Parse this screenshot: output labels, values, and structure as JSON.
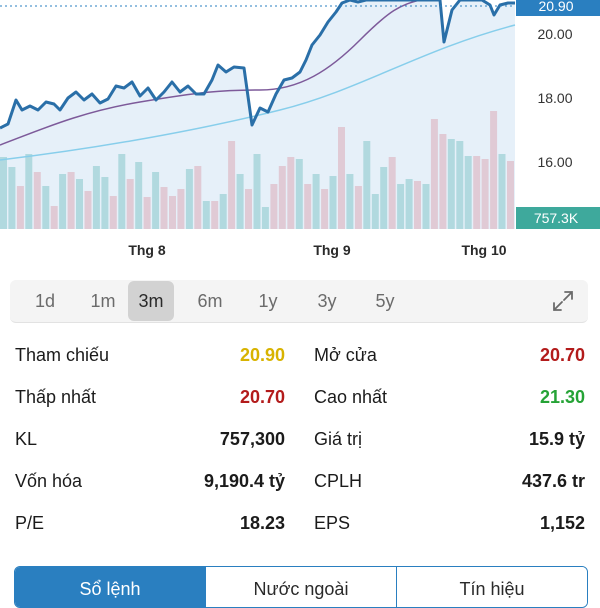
{
  "chart": {
    "price_label": "20.90",
    "volume_label": "757.3K",
    "y_ticks": [
      "20.00",
      "18.00",
      "16.00"
    ],
    "months": [
      "Thg 8",
      "Thg 9",
      "Thg 10"
    ],
    "colors": {
      "price_line": "#2a6fa8",
      "price_fill": "#dbe9f6",
      "ma_slow": "#87ceeb",
      "ma_fast": "#7d5a9a",
      "vol_up": "#4fb3a8",
      "vol_down": "#ec7f85",
      "label_blue": "#2a7fc0",
      "label_teal": "#3ea99c"
    }
  },
  "range": {
    "options": [
      "1d",
      "1m",
      "3m",
      "6m",
      "1y",
      "3y",
      "5y"
    ],
    "selected": "3m"
  },
  "stats": {
    "reference_label": "Tham chiếu",
    "reference_value": "20.90",
    "open_label": "Mở cửa",
    "open_value": "20.70",
    "low_label": "Thấp nhất",
    "low_value": "20.70",
    "high_label": "Cao nhất",
    "high_value": "21.30",
    "volume_label": "KL",
    "volume_value": "757,300",
    "value_label": "Giá trị",
    "value_value": "15.9 tỷ",
    "marketcap_label": "Vốn hóa",
    "marketcap_value": "9,190.4 tỷ",
    "shares_label": "CPLH",
    "shares_value": "437.6 tr",
    "pe_label": "P/E",
    "pe_value": "18.23",
    "eps_label": "EPS",
    "eps_value": "1,152"
  },
  "tabs": {
    "items": [
      "Sổ lệnh",
      "Nước ngoài",
      "Tín hiệu"
    ],
    "selected": "Sổ lệnh"
  }
}
